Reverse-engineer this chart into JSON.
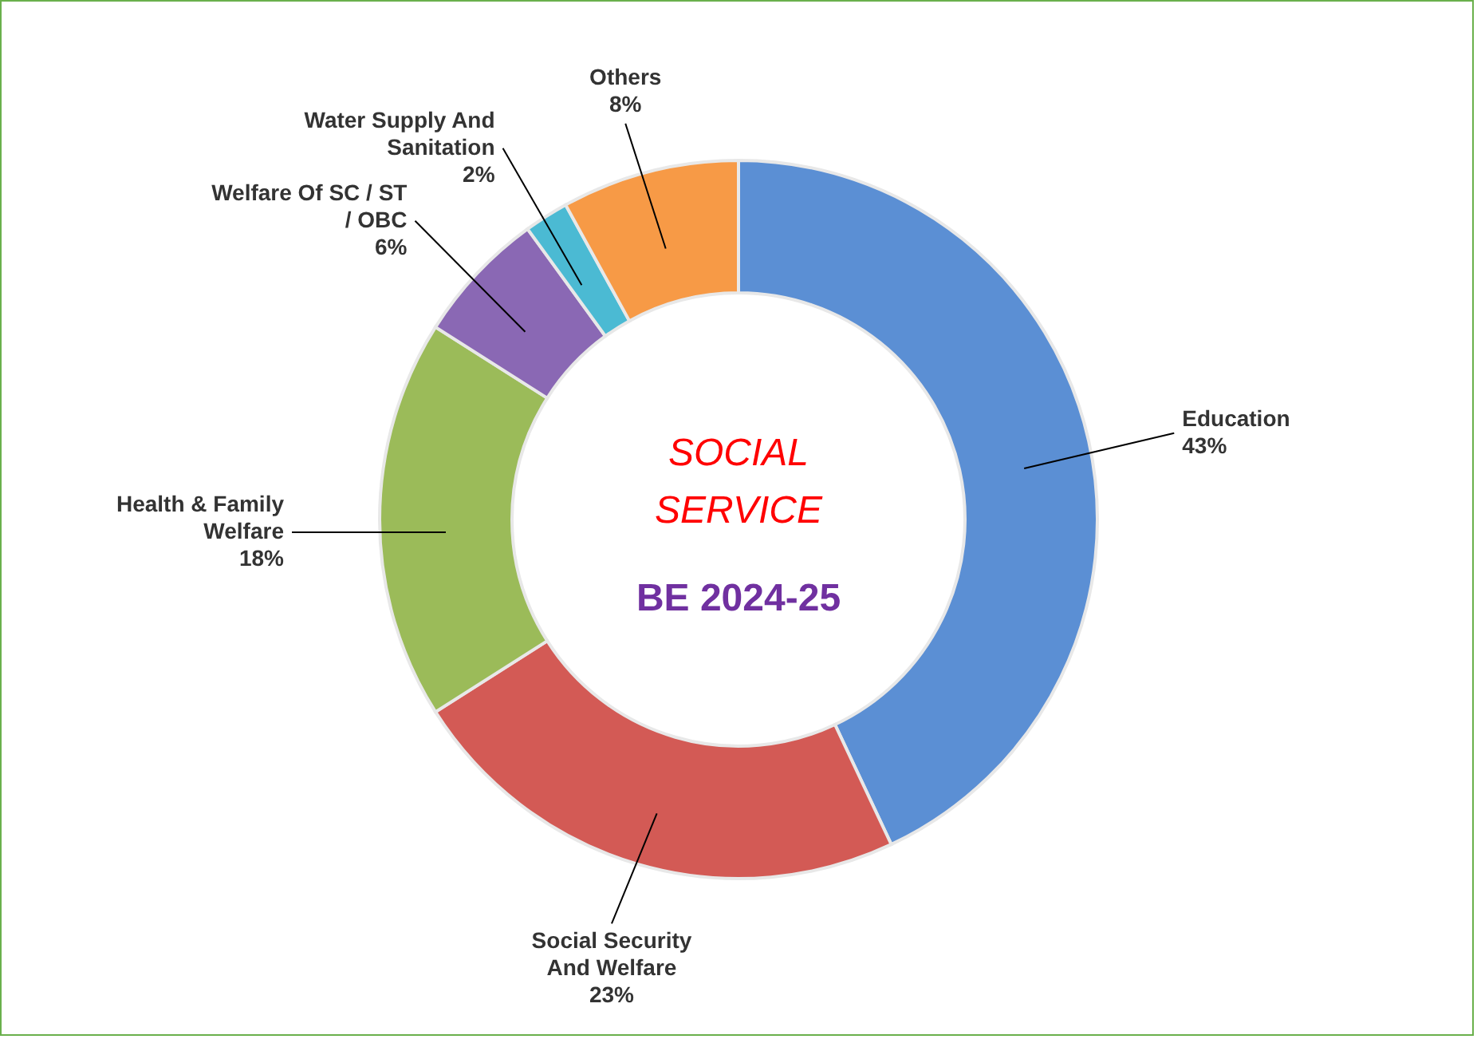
{
  "chart_data": {
    "type": "donut",
    "title": "SOCIAL SERVICE",
    "subtitle": "BE 2024-25",
    "categories": [
      "Education",
      "Social Security And Welfare",
      "Health & Family Welfare",
      "Welfare Of SC / ST / OBC",
      "Water Supply And Sanitation",
      "Others"
    ],
    "values": [
      43,
      23,
      18,
      6,
      2,
      8
    ],
    "value_labels": [
      "43%",
      "23%",
      "18%",
      "6%",
      "2%",
      "8%"
    ],
    "colors": [
      "#5b8fd4",
      "#d35a55",
      "#9bbb59",
      "#8a68b4",
      "#4bbad3",
      "#f79a46"
    ],
    "legend": false
  }
}
